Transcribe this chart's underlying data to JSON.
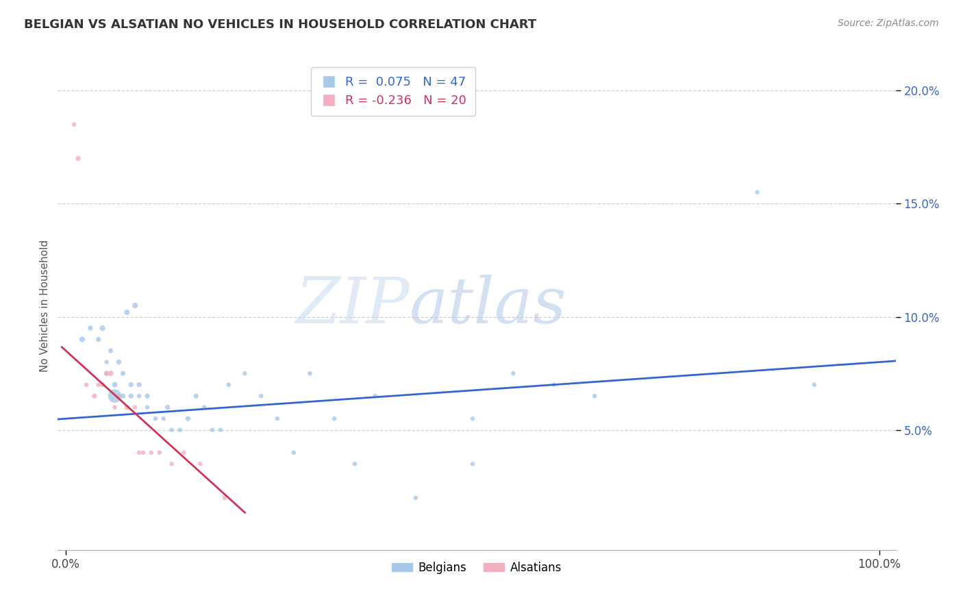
{
  "title": "BELGIAN VS ALSATIAN NO VEHICLES IN HOUSEHOLD CORRELATION CHART",
  "source": "Source: ZipAtlas.com",
  "ylabel": "No Vehicles in Household",
  "xlim": [
    -0.01,
    1.02
  ],
  "ylim": [
    -0.003,
    0.213
  ],
  "yticks": [
    0.05,
    0.1,
    0.15,
    0.2
  ],
  "ytick_labels": [
    "5.0%",
    "10.0%",
    "15.0%",
    "20.0%"
  ],
  "xtick_vals": [
    0.0,
    1.0
  ],
  "xtick_labels": [
    "0.0%",
    "100.0%"
  ],
  "belgian_color": "#a8c8e8",
  "alsatian_color": "#f0b0c0",
  "trend_belgian_color": "#3366cc",
  "trend_alsatian_color": "#cc3355",
  "belgian_R": 0.075,
  "belgian_N": 47,
  "alsatian_R": -0.236,
  "alsatian_N": 20,
  "belgians_x": [
    0.02,
    0.03,
    0.04,
    0.045,
    0.05,
    0.05,
    0.055,
    0.06,
    0.06,
    0.065,
    0.07,
    0.07,
    0.075,
    0.08,
    0.08,
    0.085,
    0.09,
    0.09,
    0.1,
    0.1,
    0.11,
    0.12,
    0.125,
    0.13,
    0.14,
    0.15,
    0.16,
    0.17,
    0.18,
    0.19,
    0.2,
    0.22,
    0.24,
    0.26,
    0.28,
    0.3,
    0.33,
    0.355,
    0.38,
    0.43,
    0.5,
    0.5,
    0.55,
    0.6,
    0.65,
    0.85,
    0.92
  ],
  "belgians_y": [
    0.09,
    0.095,
    0.09,
    0.095,
    0.08,
    0.075,
    0.085,
    0.065,
    0.07,
    0.08,
    0.065,
    0.075,
    0.102,
    0.065,
    0.07,
    0.105,
    0.065,
    0.07,
    0.065,
    0.06,
    0.055,
    0.055,
    0.06,
    0.05,
    0.05,
    0.055,
    0.065,
    0.06,
    0.05,
    0.05,
    0.07,
    0.075,
    0.065,
    0.055,
    0.04,
    0.075,
    0.055,
    0.035,
    0.065,
    0.02,
    0.055,
    0.035,
    0.075,
    0.07,
    0.065,
    0.155,
    0.07
  ],
  "belgians_size": [
    35,
    28,
    28,
    35,
    22,
    28,
    28,
    200,
    35,
    28,
    28,
    28,
    35,
    28,
    28,
    35,
    22,
    28,
    28,
    22,
    22,
    22,
    28,
    22,
    22,
    28,
    28,
    22,
    22,
    22,
    22,
    22,
    22,
    22,
    22,
    22,
    22,
    22,
    22,
    22,
    22,
    22,
    22,
    22,
    22,
    22,
    22
  ],
  "alsatians_x": [
    0.01,
    0.015,
    0.025,
    0.035,
    0.04,
    0.045,
    0.05,
    0.055,
    0.06,
    0.065,
    0.075,
    0.085,
    0.09,
    0.095,
    0.105,
    0.115,
    0.13,
    0.145,
    0.165,
    0.195
  ],
  "alsatians_y": [
    0.185,
    0.17,
    0.07,
    0.065,
    0.07,
    0.07,
    0.075,
    0.075,
    0.06,
    0.065,
    0.06,
    0.06,
    0.04,
    0.04,
    0.04,
    0.04,
    0.035,
    0.04,
    0.035,
    0.02
  ],
  "alsatians_size": [
    22,
    28,
    22,
    28,
    22,
    28,
    28,
    35,
    22,
    22,
    28,
    22,
    22,
    22,
    22,
    22,
    22,
    22,
    22,
    22
  ],
  "background_color": "#ffffff",
  "grid_color": "#d0d0d0"
}
